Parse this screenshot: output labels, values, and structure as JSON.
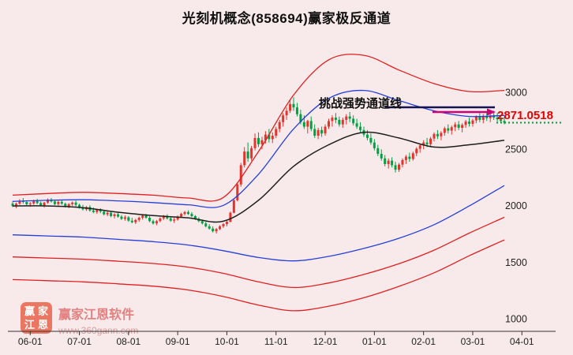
{
  "title": "光刻机概念(858694)赢家极反通道",
  "annotation": {
    "text": "挑战强势通道线",
    "price_label": "2871.0518",
    "arrow_color": "#cc0077",
    "resistance_color": "#131353"
  },
  "watermark": {
    "brand": "赢家江恩软件",
    "url": "www.360gann.com",
    "logo_chars": [
      "赢",
      "家",
      "江",
      "恩"
    ],
    "logo_color": "#e7553a"
  },
  "chart_data": {
    "type": "candlestick",
    "title": "光刻机概念(858694)赢家极反通道",
    "name": "光刻机概念",
    "symbol": "858694",
    "indicator": "赢家极反通道",
    "ylim": [
      900,
      3470
    ],
    "y_ticks": [
      3000,
      2500,
      2000,
      1500,
      1000
    ],
    "x_ticks": [
      {
        "label": "06-01",
        "i": 5
      },
      {
        "label": "07-01",
        "i": 19
      },
      {
        "label": "08-01",
        "i": 33
      },
      {
        "label": "09-01",
        "i": 47
      },
      {
        "label": "10-01",
        "i": 61
      },
      {
        "label": "11-01",
        "i": 75
      },
      {
        "label": "12-01",
        "i": 89
      },
      {
        "label": "01-01",
        "i": 103
      },
      {
        "label": "02-01",
        "i": 117
      },
      {
        "label": "03-01",
        "i": 131
      },
      {
        "label": "04-01",
        "i": 145
      }
    ],
    "up_color": "#e5332c",
    "down_color": "#00a144",
    "candles": [
      [
        2020,
        2040,
        1990,
        2000
      ],
      [
        2000,
        2030,
        1980,
        2020
      ],
      [
        2020,
        2060,
        2010,
        2045
      ],
      [
        2045,
        2070,
        2020,
        2035
      ],
      [
        2035,
        2050,
        2000,
        2015
      ],
      [
        2015,
        2035,
        1992,
        2022
      ],
      [
        2022,
        2055,
        2010,
        2045
      ],
      [
        2045,
        2062,
        2015,
        2026
      ],
      [
        2026,
        2040,
        1996,
        2006
      ],
      [
        2006,
        2036,
        1986,
        2030
      ],
      [
        2030,
        2066,
        2020,
        2056
      ],
      [
        2056,
        2070,
        2030,
        2040
      ],
      [
        2040,
        2050,
        2006,
        2016
      ],
      [
        2016,
        2046,
        2000,
        2036
      ],
      [
        2036,
        2050,
        2010,
        2020
      ],
      [
        2020,
        2030,
        1986,
        1996
      ],
      [
        1996,
        2026,
        1980,
        2016
      ],
      [
        2016,
        2040,
        2000,
        2030
      ],
      [
        2030,
        2046,
        1996,
        2010
      ],
      [
        2010,
        2020,
        1976,
        1986
      ],
      [
        1986,
        2010,
        1960,
        1970
      ],
      [
        1970,
        2000,
        1956,
        1990
      ],
      [
        1990,
        2006,
        1950,
        1960
      ],
      [
        1960,
        1986,
        1936,
        1946
      ],
      [
        1946,
        1976,
        1930,
        1966
      ],
      [
        1966,
        1980,
        1936,
        1950
      ],
      [
        1950,
        1960,
        1916,
        1926
      ],
      [
        1926,
        1956,
        1910,
        1940
      ],
      [
        1940,
        1950,
        1900,
        1910
      ],
      [
        1910,
        1936,
        1890,
        1926
      ],
      [
        1926,
        1940,
        1896,
        1906
      ],
      [
        1906,
        1920,
        1876,
        1886
      ],
      [
        1886,
        1916,
        1870,
        1900
      ],
      [
        1900,
        1910,
        1860,
        1870
      ],
      [
        1870,
        1896,
        1846,
        1856
      ],
      [
        1856,
        1886,
        1840,
        1876
      ],
      [
        1876,
        1906,
        1860,
        1896
      ],
      [
        1896,
        1926,
        1880,
        1916
      ],
      [
        1916,
        1930,
        1886,
        1896
      ],
      [
        1896,
        1910,
        1856,
        1866
      ],
      [
        1866,
        1880,
        1836,
        1846
      ],
      [
        1846,
        1876,
        1830,
        1866
      ],
      [
        1866,
        1900,
        1856,
        1890
      ],
      [
        1890,
        1920,
        1876,
        1910
      ],
      [
        1910,
        1926,
        1880,
        1890
      ],
      [
        1890,
        1906,
        1860,
        1870
      ],
      [
        1870,
        1896,
        1850,
        1880
      ],
      [
        1880,
        1916,
        1870,
        1906
      ],
      [
        1906,
        1940,
        1896,
        1930
      ],
      [
        1930,
        1956,
        1916,
        1946
      ],
      [
        1946,
        1960,
        1920,
        1930
      ],
      [
        1930,
        1946,
        1900,
        1910
      ],
      [
        1910,
        1920,
        1876,
        1886
      ],
      [
        1886,
        1900,
        1856,
        1866
      ],
      [
        1866,
        1880,
        1836,
        1846
      ],
      [
        1846,
        1860,
        1810,
        1820
      ],
      [
        1820,
        1840,
        1790,
        1800
      ],
      [
        1800,
        1820,
        1766,
        1776
      ],
      [
        1776,
        1806,
        1756,
        1796
      ],
      [
        1796,
        1830,
        1786,
        1820
      ],
      [
        1820,
        1850,
        1806,
        1840
      ],
      [
        1840,
        1870,
        1820,
        1860
      ],
      [
        1860,
        1950,
        1855,
        1940
      ],
      [
        1940,
        2060,
        1935,
        2050
      ],
      [
        2050,
        2200,
        2040,
        2190
      ],
      [
        2190,
        2380,
        2170,
        2360
      ],
      [
        2360,
        2520,
        2340,
        2480
      ],
      [
        2480,
        2560,
        2390,
        2420
      ],
      [
        2420,
        2530,
        2400,
        2510
      ],
      [
        2510,
        2640,
        2490,
        2600
      ],
      [
        2600,
        2650,
        2520,
        2545
      ],
      [
        2545,
        2610,
        2500,
        2580
      ],
      [
        2580,
        2660,
        2550,
        2630
      ],
      [
        2630,
        2680,
        2560,
        2590
      ],
      [
        2590,
        2650,
        2555,
        2620
      ],
      [
        2620,
        2700,
        2600,
        2680
      ],
      [
        2680,
        2760,
        2650,
        2740
      ],
      [
        2740,
        2820,
        2700,
        2800
      ],
      [
        2800,
        2870,
        2760,
        2840
      ],
      [
        2840,
        2940,
        2820,
        2900
      ],
      [
        2900,
        2960,
        2840,
        2870
      ],
      [
        2870,
        2910,
        2790,
        2810
      ],
      [
        2810,
        2850,
        2720,
        2740
      ],
      [
        2740,
        2800,
        2680,
        2700
      ],
      [
        2700,
        2760,
        2640,
        2750
      ],
      [
        2750,
        2790,
        2660,
        2680
      ],
      [
        2680,
        2720,
        2600,
        2620
      ],
      [
        2620,
        2690,
        2590,
        2670
      ],
      [
        2670,
        2700,
        2610,
        2640
      ],
      [
        2640,
        2720,
        2620,
        2700
      ],
      [
        2700,
        2770,
        2680,
        2750
      ],
      [
        2750,
        2800,
        2700,
        2780
      ],
      [
        2780,
        2820,
        2730,
        2760
      ],
      [
        2760,
        2790,
        2700,
        2720
      ],
      [
        2720,
        2780,
        2690,
        2760
      ],
      [
        2760,
        2810,
        2720,
        2790
      ],
      [
        2790,
        2830,
        2740,
        2770
      ],
      [
        2770,
        2800,
        2710,
        2730
      ],
      [
        2730,
        2770,
        2680,
        2700
      ],
      [
        2700,
        2740,
        2650,
        2670
      ],
      [
        2670,
        2700,
        2610,
        2630
      ],
      [
        2630,
        2670,
        2580,
        2600
      ],
      [
        2600,
        2640,
        2540,
        2560
      ],
      [
        2560,
        2590,
        2490,
        2510
      ],
      [
        2510,
        2540,
        2440,
        2460
      ],
      [
        2460,
        2500,
        2400,
        2420
      ],
      [
        2420,
        2450,
        2350,
        2370
      ],
      [
        2370,
        2420,
        2330,
        2400
      ],
      [
        2400,
        2430,
        2340,
        2360
      ],
      [
        2360,
        2390,
        2295,
        2320
      ],
      [
        2320,
        2380,
        2300,
        2365
      ],
      [
        2365,
        2420,
        2340,
        2405
      ],
      [
        2405,
        2450,
        2370,
        2435
      ],
      [
        2435,
        2470,
        2390,
        2415
      ],
      [
        2415,
        2480,
        2400,
        2465
      ],
      [
        2465,
        2520,
        2440,
        2505
      ],
      [
        2505,
        2550,
        2470,
        2535
      ],
      [
        2535,
        2580,
        2500,
        2560
      ],
      [
        2560,
        2600,
        2520,
        2545
      ],
      [
        2545,
        2610,
        2530,
        2595
      ],
      [
        2595,
        2650,
        2570,
        2635
      ],
      [
        2635,
        2670,
        2590,
        2615
      ],
      [
        2615,
        2660,
        2580,
        2645
      ],
      [
        2645,
        2700,
        2620,
        2685
      ],
      [
        2685,
        2720,
        2640,
        2665
      ],
      [
        2665,
        2710,
        2630,
        2695
      ],
      [
        2695,
        2740,
        2660,
        2720
      ],
      [
        2720,
        2750,
        2670,
        2690
      ],
      [
        2690,
        2730,
        2650,
        2715
      ],
      [
        2715,
        2760,
        2690,
        2745
      ],
      [
        2745,
        2780,
        2700,
        2725
      ],
      [
        2725,
        2770,
        2700,
        2755
      ],
      [
        2755,
        2800,
        2730,
        2785
      ],
      [
        2785,
        2820,
        2740,
        2760
      ],
      [
        2760,
        2810,
        2730,
        2795
      ],
      [
        2795,
        2830,
        2750,
        2775
      ],
      [
        2775,
        2815,
        2740,
        2800
      ],
      [
        2800,
        2840,
        2760,
        2780
      ],
      [
        2780,
        2820,
        2745,
        2765
      ],
      [
        2765,
        2800,
        2730,
        2750
      ],
      [
        2750,
        2790,
        2720,
        2735
      ]
    ],
    "channel_lines": [
      {
        "name": "upper-rail-red",
        "color": "#e02020",
        "width": 1.3,
        "xs": [
          0,
          10,
          20,
          30,
          40,
          50,
          60,
          70,
          80,
          90,
          100,
          110,
          120,
          130,
          140
        ],
        "values": [
          2095,
          2110,
          2120,
          2110,
          2095,
          2070,
          2075,
          2480,
          2980,
          3290,
          3330,
          3200,
          3080,
          3010,
          3020
        ]
      },
      {
        "name": "upper-rail-blue",
        "color": "#2440d8",
        "width": 1.3,
        "xs": [
          0,
          10,
          20,
          30,
          40,
          50,
          60,
          70,
          80,
          90,
          100,
          110,
          120,
          130,
          140
        ],
        "values": [
          2040,
          2050,
          2055,
          2045,
          2030,
          2010,
          2005,
          2280,
          2680,
          2950,
          3020,
          2930,
          2840,
          2790,
          2800
        ]
      },
      {
        "name": "lower-rail-blue",
        "color": "#2440d8",
        "width": 1.3,
        "xs": [
          0,
          10,
          20,
          30,
          40,
          50,
          60,
          70,
          80,
          90,
          100,
          110,
          120,
          130,
          140
        ],
        "values": [
          1745,
          1735,
          1725,
          1705,
          1685,
          1655,
          1605,
          1545,
          1515,
          1555,
          1625,
          1715,
          1835,
          2000,
          2180
        ]
      },
      {
        "name": "lower-rail-red",
        "color": "#e02020",
        "width": 1.3,
        "xs": [
          0,
          10,
          20,
          30,
          40,
          50,
          60,
          70,
          80,
          90,
          100,
          110,
          120,
          130,
          140
        ],
        "values": [
          1550,
          1540,
          1530,
          1512,
          1492,
          1460,
          1405,
          1330,
          1280,
          1320,
          1395,
          1490,
          1610,
          1760,
          1900
        ]
      },
      {
        "name": "outer-lower-rail-red",
        "color": "#e02020",
        "width": 1.3,
        "xs": [
          0,
          10,
          20,
          30,
          40,
          50,
          60,
          70,
          80,
          90,
          100,
          110,
          120,
          130,
          140
        ],
        "values": [
          1350,
          1340,
          1330,
          1312,
          1292,
          1258,
          1200,
          1125,
          1075,
          1115,
          1190,
          1290,
          1410,
          1560,
          1700
        ]
      },
      {
        "name": "life-line-black",
        "color": "#1d1d1d",
        "width": 1.5,
        "xs": [
          0,
          10,
          20,
          30,
          40,
          50,
          60,
          70,
          80,
          90,
          100,
          110,
          120,
          130,
          140
        ],
        "values": [
          2000,
          2000,
          1985,
          1945,
          1915,
          1895,
          1865,
          2050,
          2350,
          2540,
          2650,
          2600,
          2520,
          2540,
          2580
        ]
      }
    ],
    "resistance_line": {
      "price": 2871.0518,
      "label": "2871.0518",
      "start_i": 106
    },
    "last_price_line": {
      "price": 2735,
      "color": "#009933",
      "style": "dotted"
    }
  }
}
